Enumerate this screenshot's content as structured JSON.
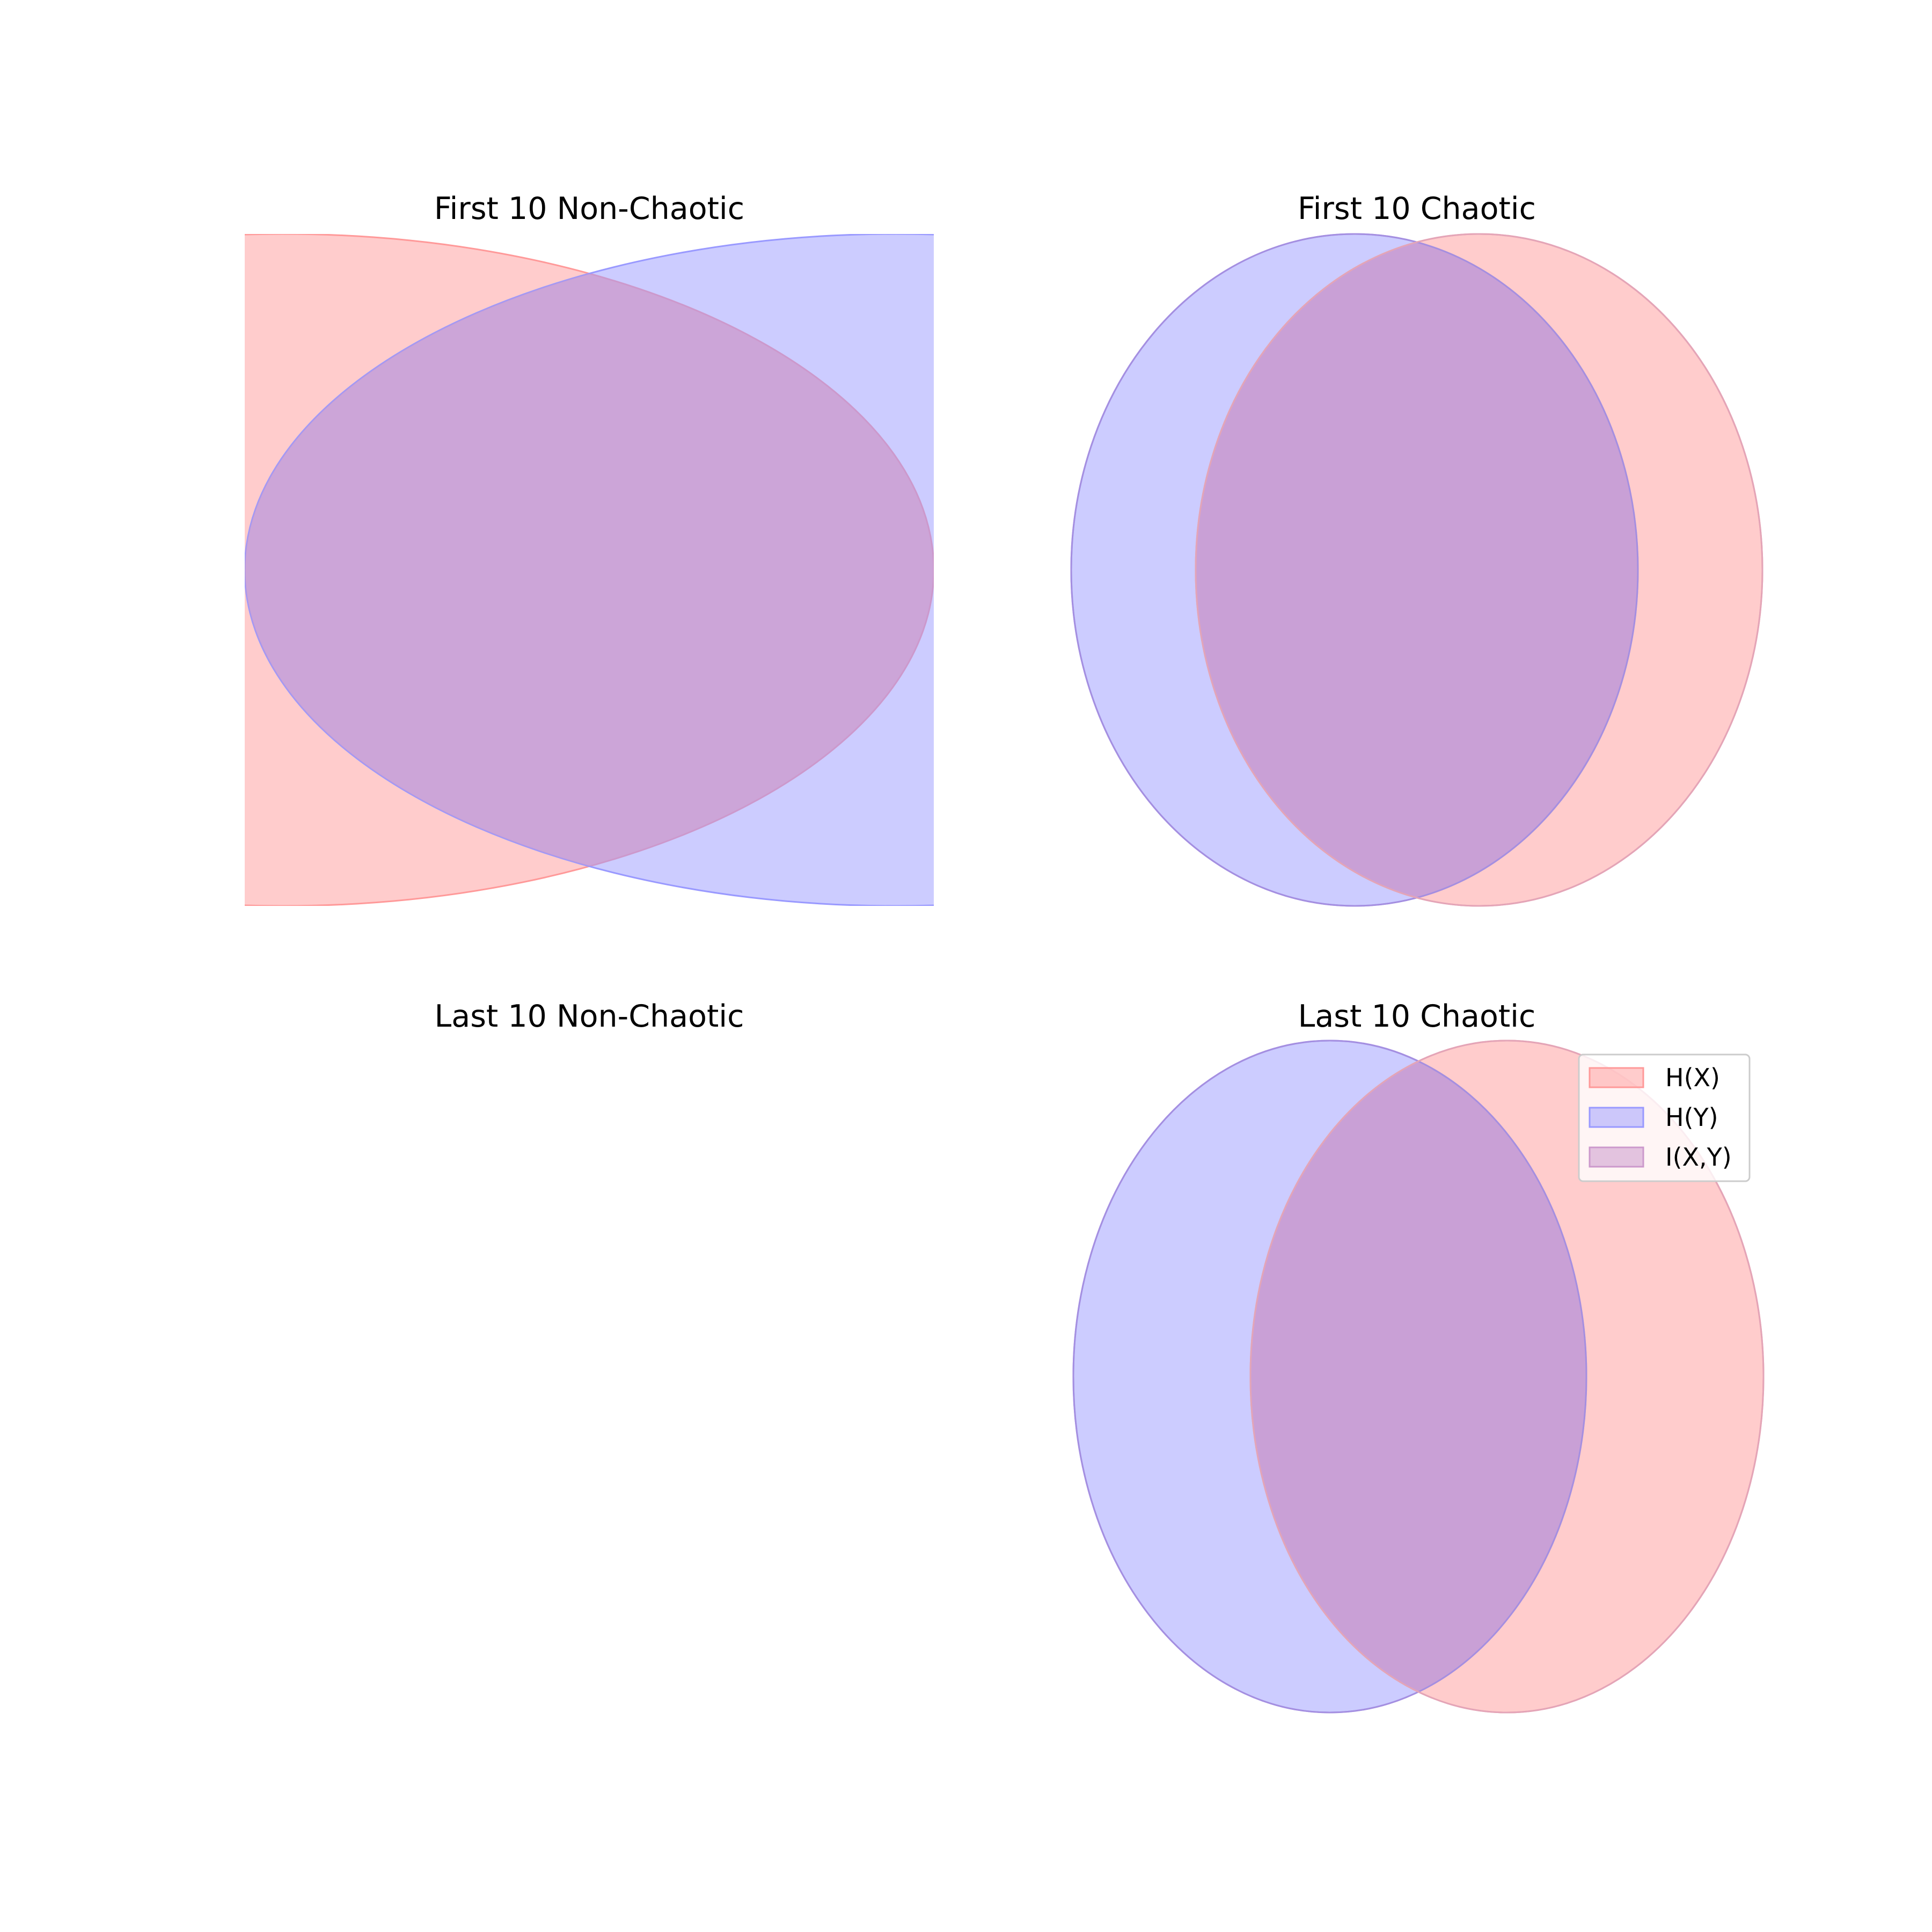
{
  "figure": {
    "panels": [
      {
        "title": "First 10 Non-Chaotic",
        "venn": {
          "hx_only": "",
          "hy_only": "",
          "overlap": ""
        }
      },
      {
        "title": "First 10 Chaotic",
        "venn": {
          "hx_only": "",
          "hy_only": "",
          "overlap": ""
        }
      },
      {
        "title": "Last 10 Non-Chaotic",
        "venn": null
      },
      {
        "title": "Last 10 Chaotic",
        "venn": {
          "hx_only": "",
          "hy_only": "",
          "overlap": ""
        }
      }
    ],
    "legend": {
      "placement": "upper-right of last panel",
      "items": [
        {
          "label": "H(X)",
          "color": "#ff9999"
        },
        {
          "label": "H(Y)",
          "color": "#9999ff"
        },
        {
          "label": "I(X,Y)",
          "color": "#cc99cc"
        }
      ]
    }
  },
  "colors": {
    "hx_fill": "#ff9999",
    "hy_fill": "#9999ff",
    "overlap_fill": "#cc99cc",
    "background": "#ffffff"
  }
}
